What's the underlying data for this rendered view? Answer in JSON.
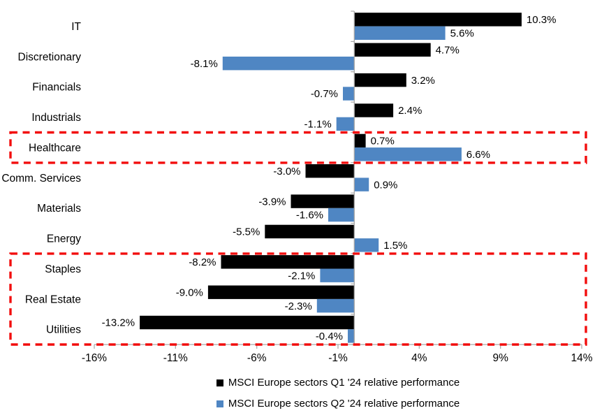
{
  "chart_data": {
    "type": "bar",
    "orientation": "horizontal",
    "title": "",
    "categories": [
      "IT",
      "Discretionary",
      "Financials",
      "Industrials",
      "Healthcare",
      "Comm. Services",
      "Materials",
      "Energy",
      "Staples",
      "Real Estate",
      "Utilities"
    ],
    "series": [
      {
        "name": "MSCI Europe sectors Q1 '24 relative performance",
        "color": "#000000",
        "values": [
          10.3,
          4.7,
          3.2,
          2.4,
          0.7,
          -3.0,
          -3.9,
          -5.5,
          -8.2,
          -9.0,
          -13.2
        ],
        "value_labels": [
          "10.3%",
          "4.7%",
          "3.2%",
          "2.4%",
          "0.7%",
          "-3.0%",
          "-3.9%",
          "-5.5%",
          "-8.2%",
          "-9.0%",
          "-13.2%"
        ]
      },
      {
        "name": "MSCI Europe sectors Q2 '24 relative performance",
        "color": "#4F86C3",
        "values": [
          5.6,
          -8.1,
          -0.7,
          -1.1,
          6.6,
          0.9,
          -1.6,
          1.5,
          -2.1,
          -2.3,
          -0.4
        ],
        "value_labels": [
          "5.6%",
          "-8.1%",
          "-0.7%",
          "-1.1%",
          "6.6%",
          "0.9%",
          "-1.6%",
          "1.5%",
          "-2.1%",
          "-2.3%",
          "-0.4%"
        ]
      }
    ],
    "x_ticks": [
      -16,
      -11,
      -6,
      -1,
      4,
      9,
      14
    ],
    "x_tick_labels": [
      "-16%",
      "-11%",
      "-6%",
      "-1%",
      "4%",
      "9%",
      "14%"
    ],
    "xlim": [
      -16,
      14
    ],
    "grid": false,
    "legend_position": "bottom",
    "axis_color": "#A6A6A6",
    "highlight_color": "#F20D0D",
    "highlights": [
      {
        "id": "healthcare-highlight",
        "categories": [
          "Healthcare"
        ],
        "row_start": 4,
        "row_end": 4
      },
      {
        "id": "defensives-highlight",
        "categories": [
          "Staples",
          "Real Estate",
          "Utilities"
        ],
        "row_start": 8,
        "row_end": 10
      }
    ]
  }
}
